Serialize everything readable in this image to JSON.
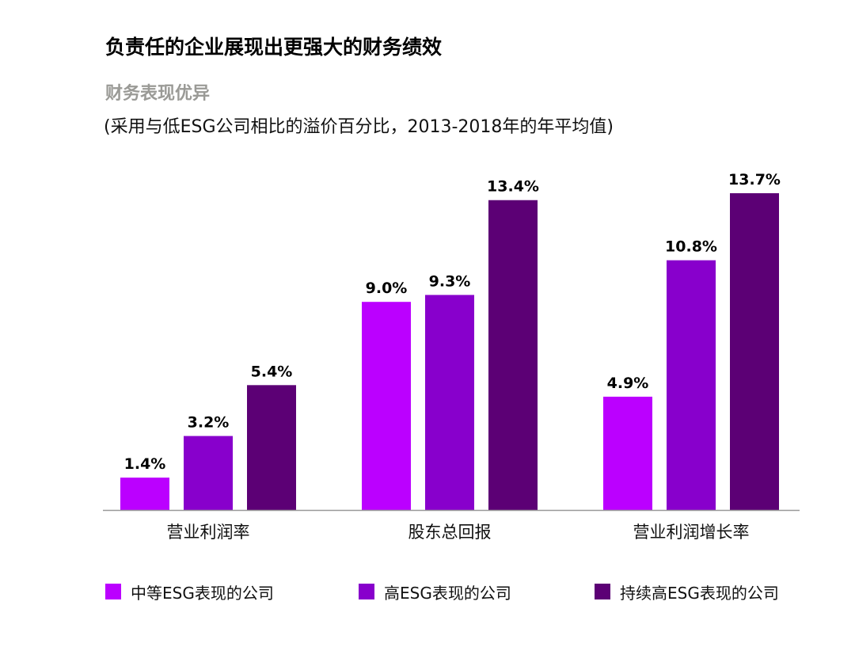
{
  "title": "负责任的企业展现出更强大的财务绩效",
  "subtitle": "财务表现优异",
  "note": "(采用与低ESG公司相比的溢价百分比，2013-2018年的年平均值)",
  "chart_data": {
    "type": "bar",
    "categories": [
      "营业利润率",
      "股东总回报",
      "营业利润增长率"
    ],
    "series": [
      {
        "name": "中等ESG表现的公司",
        "values": [
          1.4,
          9.0,
          4.9
        ],
        "labels": [
          "1.4%",
          "9.0%",
          "4.9%"
        ],
        "color": "#bb00ff"
      },
      {
        "name": "高ESG表现的公司",
        "values": [
          3.2,
          9.3,
          10.8
        ],
        "labels": [
          "3.2%",
          "9.3%",
          "10.8%"
        ],
        "color": "#8800cc"
      },
      {
        "name": "持续高ESG表现的公司",
        "values": [
          5.4,
          13.4,
          13.7
        ],
        "labels": [
          "5.4%",
          "13.4%",
          "13.7%"
        ],
        "color": "#5c0075"
      }
    ],
    "ylim": [
      0,
      14
    ],
    "unit": "%",
    "grid": false,
    "legend_position": "bottom"
  }
}
